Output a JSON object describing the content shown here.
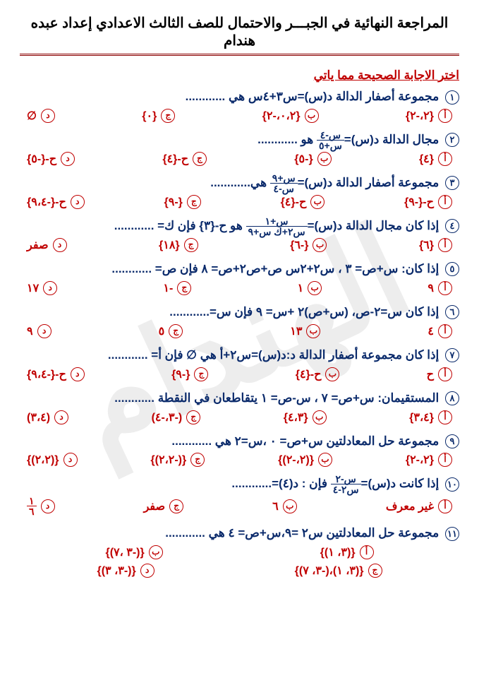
{
  "watermark": "الهندام",
  "header": {
    "title": "المراجعة النهائية في الجبـــر والاحتمال للصف الثالث الاعدادي إعداد عبده هندام"
  },
  "section_head": "اختر الاجابة الصحيحة مما ياتي",
  "questions": [
    {
      "num": "١",
      "text": "مجموعة أصفار الدالة د(س)=س٣+٤س هي ............",
      "opts": [
        "{٢،-٢}",
        "{٠،٢،-٢}",
        "{٠}",
        "∅"
      ]
    },
    {
      "num": "٢",
      "text_html": "مجال الدالة د(س)=<span class='frac'><span class='top'>س-٤</span><span class='bot'>س+٥</span></span> هو ............",
      "opts": [
        "{٤}",
        "{-٥}",
        "ح-{٤}",
        "ح-{-٥}"
      ]
    },
    {
      "num": "٣",
      "text_html": "مجموعة أصفار الدالة د(س)=<span class='frac'><span class='top'>س+٩</span><span class='bot'>س-٤</span></span> هي............",
      "opts": [
        "ح-{-٩}",
        "ح-{٤}",
        "{-٩}",
        "ح-{-٩،٤}"
      ]
    },
    {
      "num": "٤",
      "text_html": "إذا كان مجال الدالة د(س)=<span class='frac'><span class='top'>س+١</span><span class='bot'>س٢+ك س+٩</span></span> هو ح-{٣} فإن ك= ............",
      "opts": [
        "{٦}",
        "{-٦}",
        "{١٨}",
        "صفر"
      ]
    },
    {
      "num": "٥",
      "text": "إذا كان: س+ص= ٣ ، س٢+٢س ص+ص٢+ص= ٨ فإن ص= ............",
      "opts": [
        "٩",
        "١",
        "-١",
        "١٧"
      ]
    },
    {
      "num": "٦",
      "text": "إذا كان س=٢-ص، (س+ص)٢ +س= ٩ فإن س=............",
      "opts": [
        "٤",
        "١٣",
        "٥",
        "٩"
      ]
    },
    {
      "num": "٧",
      "text": "إذا كان مجموعة أصفار الدالة د:د(س)=س٢+أ هي ∅ فإن أ= ............",
      "opts": [
        "ح",
        "ح-{٤}",
        "{-٩}",
        "ح-{-٩،٤}"
      ]
    },
    {
      "num": "٨",
      "text": "المستقيمان: س+ص= ٧ ، س-ص= ١ يتقاطعان في النقطة ............",
      "opts": [
        "{٣،٤}",
        "{٤،٣}",
        "(-٣،-٤)",
        "(٣،٤)"
      ]
    },
    {
      "num": "٩",
      "text": "مجموعة حل المعادلتين س+ص= ٠ ،س=٢ هي ............",
      "opts": [
        "{٢،-٢}",
        "{(٢،-٢)}",
        "{(-٢،٢)}",
        "{(٢،٢)}"
      ]
    },
    {
      "num": "١٠",
      "text_html": "إذا كانت د(س)=<span class='frac'><span class='top'>س-٢</span><span class='bot'>س٢-٤</span></span> فإن : د(٤)=............",
      "opts": [
        "غير معرف",
        "٦",
        "صفر"
      ],
      "opt4_html": "<span class='frac'><span class='top'>١</span><span class='bot'>٦</span></span>"
    },
    {
      "num": "١١",
      "text": "مجموعة حل المعادلتين س٢ =٩،س+ص= ٤ هي ............",
      "opts_two_rows": [
        [
          "{(٣، ١)}",
          "{(-٣ ،٧)}"
        ],
        [
          "{(٣، ١)،(-٣، ٧)}",
          "{(-٣، ٣)}"
        ]
      ]
    }
  ],
  "opt_letters": [
    "أ",
    "ب",
    "ج",
    "د"
  ],
  "colors": {
    "blue": "#0a2a6b",
    "red": "#c00000",
    "rule": "#8b0000"
  }
}
